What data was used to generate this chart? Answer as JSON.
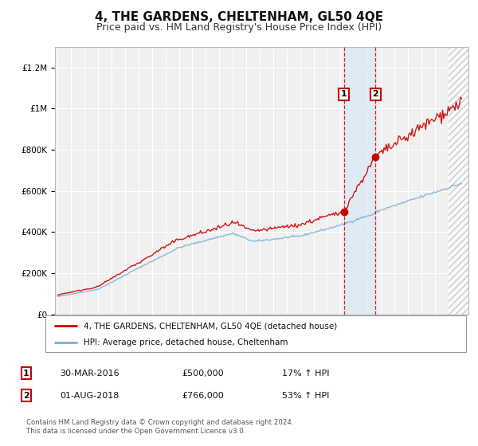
{
  "title": "4, THE GARDENS, CHELTENHAM, GL50 4QE",
  "subtitle": "Price paid vs. HM Land Registry's House Price Index (HPI)",
  "ylabel_ticks": [
    "£0",
    "£200K",
    "£400K",
    "£600K",
    "£800K",
    "£1M",
    "£1.2M"
  ],
  "ytick_values": [
    0,
    200000,
    400000,
    600000,
    800000,
    1000000,
    1200000
  ],
  "ylim": [
    0,
    1300000
  ],
  "xlim_start": 1994.8,
  "xlim_end": 2025.5,
  "red_line_color": "#cc0000",
  "blue_line_color": "#7ab0d4",
  "marker1_date": 2016.25,
  "marker1_price": 500000,
  "marker2_date": 2018.6,
  "marker2_price": 766000,
  "marker1_label": "1",
  "marker2_label": "2",
  "vline1_x": 2016.25,
  "vline2_x": 2018.6,
  "shade_color": "#d8e8f4",
  "hatch_start": 2024.0,
  "legend_line1": "4, THE GARDENS, CHELTENHAM, GL50 4QE (detached house)",
  "legend_line2": "HPI: Average price, detached house, Cheltenham",
  "table_row1_num": "1",
  "table_row1_date": "30-MAR-2016",
  "table_row1_price": "£500,000",
  "table_row1_hpi": "17% ↑ HPI",
  "table_row2_num": "2",
  "table_row2_date": "01-AUG-2018",
  "table_row2_price": "£766,000",
  "table_row2_hpi": "53% ↑ HPI",
  "footer": "Contains HM Land Registry data © Crown copyright and database right 2024.\nThis data is licensed under the Open Government Licence v3.0.",
  "bg_color": "#ffffff",
  "plot_bg_color": "#f0f0f0",
  "grid_color": "#ffffff",
  "title_fontsize": 11,
  "subtitle_fontsize": 9
}
